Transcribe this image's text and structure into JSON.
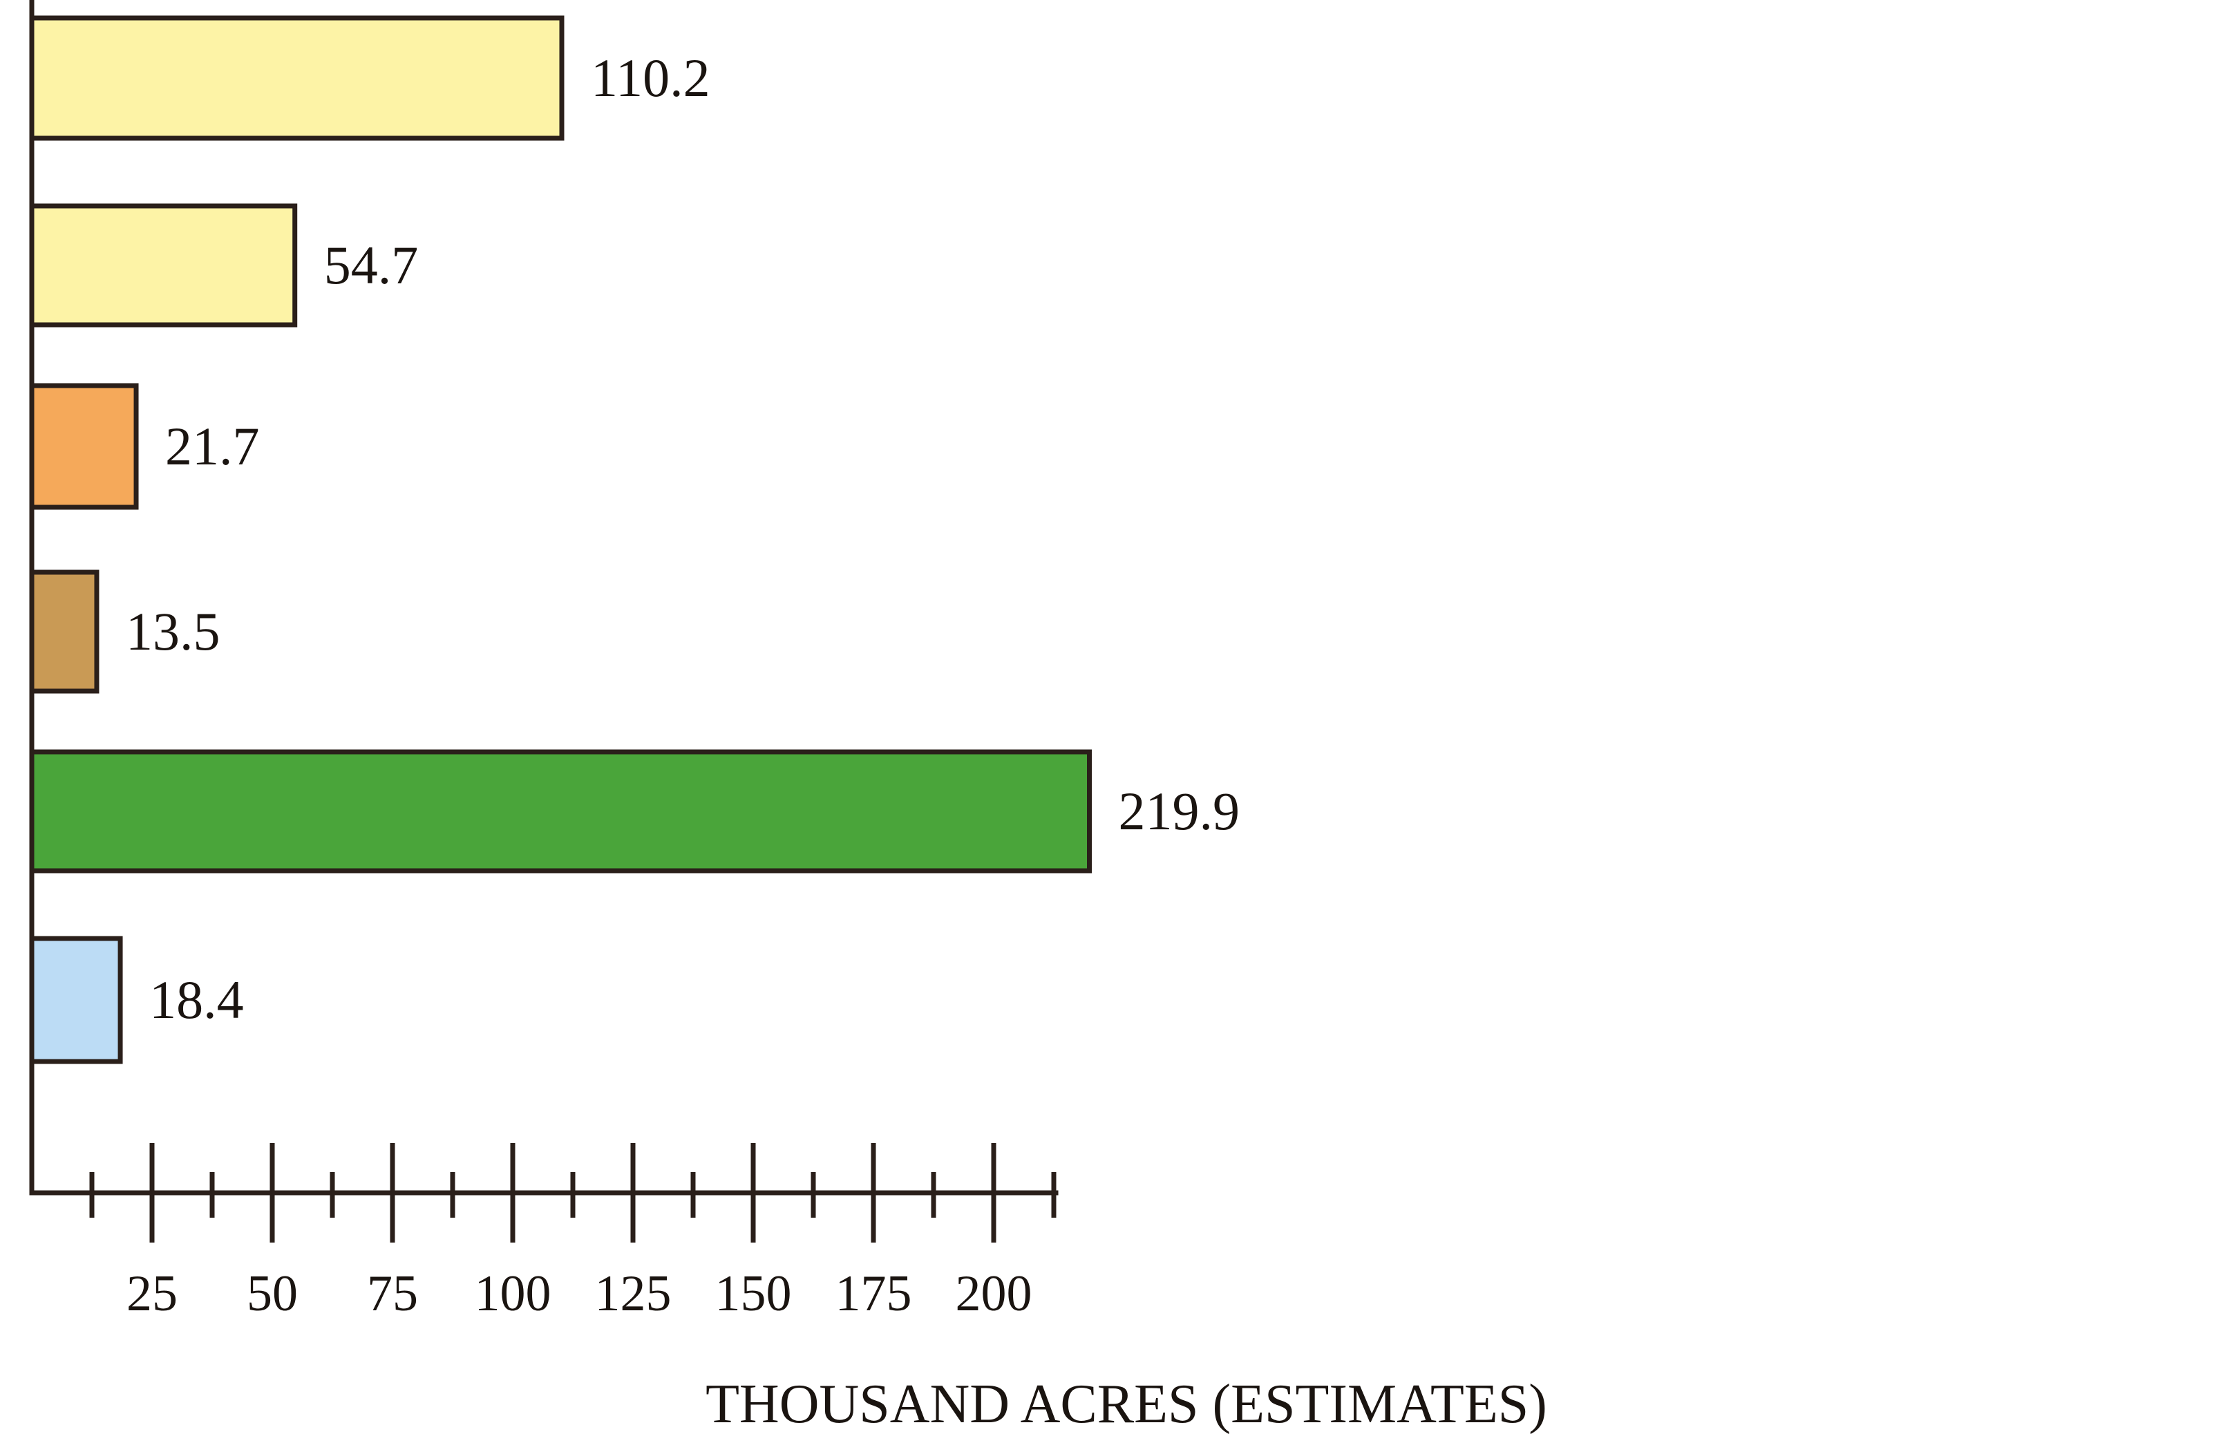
{
  "chart_data": {
    "type": "bar",
    "orientation": "horizontal",
    "values": [
      110.2,
      54.7,
      21.7,
      13.5,
      219.9,
      18.4
    ],
    "value_labels": [
      "110.2",
      "54.7",
      "21.7",
      "13.5",
      "219.9",
      "18.4"
    ],
    "colors": [
      "#fdf3a6",
      "#fdf3a6",
      "#f5a95a",
      "#c99a55",
      "#4aa53a",
      "#bcdcf5"
    ],
    "xlabel": "THOUSAND ACRES (ESTIMATES)",
    "xlim": [
      0,
      212
    ],
    "x_ticks": [
      25,
      50,
      75,
      100,
      125,
      150,
      175,
      200
    ],
    "x_tick_labels": [
      "25",
      "50",
      "75",
      "100",
      "125",
      "150",
      "175",
      "200"
    ],
    "x_minor_ticks": [
      12.5,
      37.5,
      62.5,
      87.5,
      112.5,
      137.5,
      162.5,
      187.5,
      212.5
    ],
    "grid": false,
    "legend": "none"
  }
}
